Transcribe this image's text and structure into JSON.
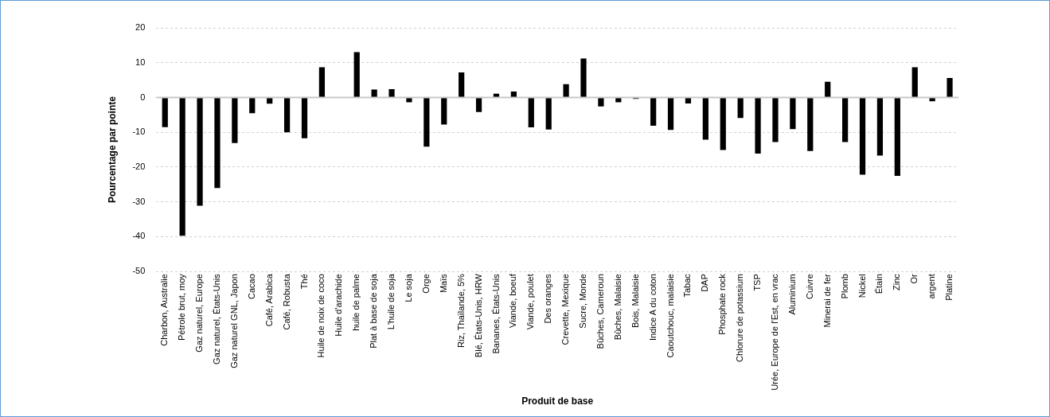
{
  "chart_data": {
    "type": "bar",
    "xlabel": "Produit de base",
    "ylabel": "Pourcentage par pointe",
    "categories": [
      "Charbon, Australie",
      "Pétrole brut, moy",
      "Gaz naturel, Europe",
      "Gaz naturel, États-Unis",
      "Gaz naturel GNL, Japon",
      "Cacao",
      "Café, Arabica",
      "Café, Robusta",
      "Thé",
      "Huile de noix de coco",
      "Huile d'arachide",
      "huile de palme",
      "Plat à base de soja",
      "L'huile de soja",
      "Le soja",
      "Orge",
      "Maïs",
      "Riz, Thaïlande, 5%",
      "Blé, États-Unis, HRW",
      "Bananes, États-Unis",
      "Viande, boeuf",
      "Viande, poulet",
      "Des oranges",
      "Crevette, Mexique",
      "Sucre, Monde",
      "Bûches, Cameroun",
      "Bûches, Malaisie",
      "Bois, Malaisie",
      "Indice A du coton",
      "Caoutchouc, malaisie",
      "Tabac",
      "DAP",
      "Phosphate rock",
      "Chlorure de potassium",
      "TSP",
      "Urée, Europe de l'Est, en vrac",
      "Aluminium",
      "Cuivre",
      "Minerai de fer",
      "Plomb",
      "Nickel",
      "Étain",
      "Zinc",
      "Or",
      "argent",
      "Platine"
    ],
    "values": [
      -8.5,
      -39.7,
      -31.1,
      -26.0,
      -13.1,
      -4.5,
      -1.8,
      -10.0,
      -11.7,
      8.7,
      0,
      13.0,
      2.3,
      2.4,
      -1.4,
      -14.1,
      -7.8,
      7.2,
      -4.2,
      1.1,
      1.7,
      -8.6,
      -9.2,
      3.8,
      11.2,
      -2.6,
      -1.4,
      -0.4,
      -8.1,
      -9.3,
      -1.7,
      -12.1,
      -15.1,
      -5.9,
      -16.1,
      -12.8,
      -9.1,
      -15.4,
      4.5,
      -12.8,
      -22.2,
      -16.7,
      -22.5,
      8.7,
      -1.1,
      5.6
    ],
    "color": "#000000",
    "ylim": [
      -50,
      20
    ],
    "yticks": [
      -50,
      -40,
      -30,
      -20,
      -10,
      0,
      10,
      20
    ],
    "grid": "y",
    "legend": false
  }
}
